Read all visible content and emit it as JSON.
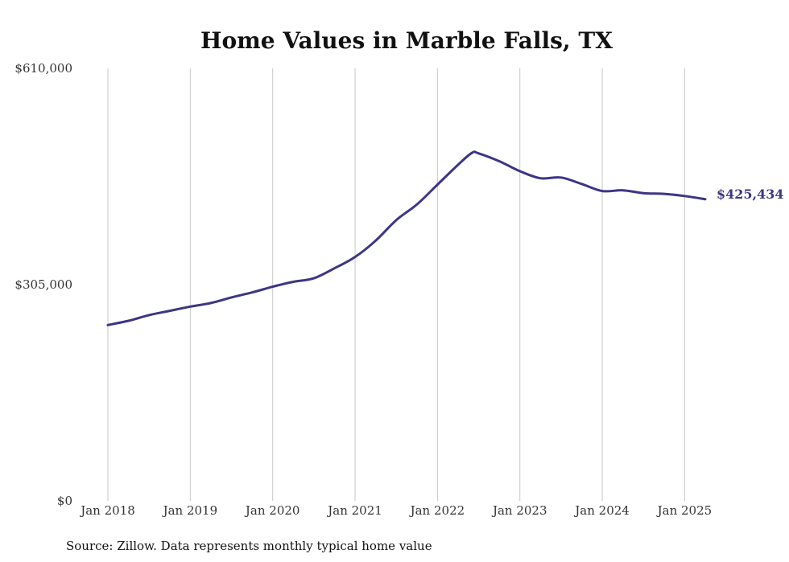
{
  "chart_data": {
    "type": "line",
    "title": "Home Values in Marble Falls, TX",
    "source": "Source: Zillow. Data represents monthly typical home value",
    "ylim": [
      0,
      610000
    ],
    "yticks": [
      {
        "value": 0,
        "label": "$0"
      },
      {
        "value": 305000,
        "label": "$305,000"
      },
      {
        "value": 610000,
        "label": "$610,000"
      }
    ],
    "xlim": [
      2018.0,
      2025.25
    ],
    "xticks": [
      {
        "value": 2018,
        "label": "Jan 2018"
      },
      {
        "value": 2019,
        "label": "Jan 2019"
      },
      {
        "value": 2020,
        "label": "Jan 2020"
      },
      {
        "value": 2021,
        "label": "Jan 2021"
      },
      {
        "value": 2022,
        "label": "Jan 2022"
      },
      {
        "value": 2023,
        "label": "Jan 2023"
      },
      {
        "value": 2024,
        "label": "Jan 2024"
      },
      {
        "value": 2025,
        "label": "Jan 2025"
      }
    ],
    "grid": "vertical",
    "line_color": "#3d3585",
    "end_label": "$425,434",
    "series": [
      {
        "x": [
          2018.0,
          2018.25,
          2018.5,
          2018.75,
          2019.0,
          2019.25,
          2019.5,
          2019.75,
          2020.0,
          2020.25,
          2020.5,
          2020.75,
          2021.0,
          2021.25,
          2021.5,
          2021.75,
          2022.0,
          2022.25,
          2022.42,
          2022.5,
          2022.75,
          2023.0,
          2023.25,
          2023.5,
          2023.75,
          2024.0,
          2024.25,
          2024.5,
          2024.75,
          2025.0,
          2025.25
        ],
        "y": [
          248000,
          254000,
          262000,
          268000,
          274000,
          279000,
          287000,
          294000,
          302000,
          309000,
          314000,
          328000,
          344000,
          367000,
          396000,
          418000,
          446000,
          474000,
          491000,
          490000,
          479000,
          465000,
          455000,
          456000,
          447000,
          437000,
          438000,
          434000,
          433000,
          430000,
          425434
        ]
      }
    ]
  }
}
